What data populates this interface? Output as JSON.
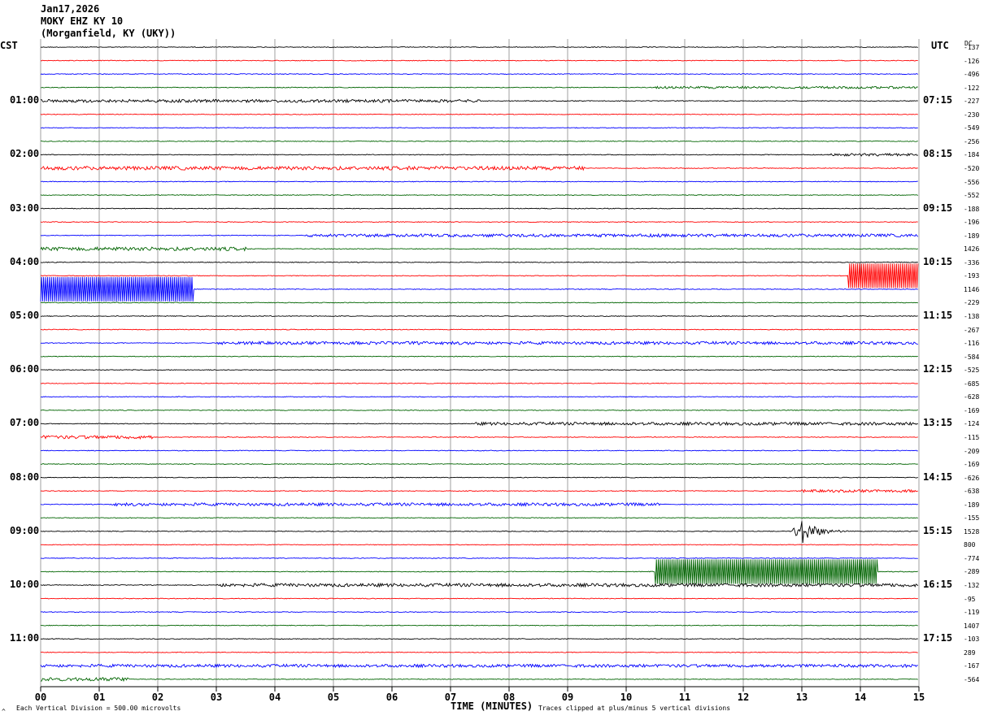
{
  "header": {
    "date": "Jan17,2026",
    "station": "MOKY EHZ KY 10",
    "location": "(Morganfield, KY (UKY))"
  },
  "left_axis_title": "CST",
  "right_axis_title": "UTC",
  "dc_label": "DC",
  "footer": {
    "scale_note": "Each Vertical Division =  500.00 microvolts",
    "xlabel": "TIME (MINUTES)",
    "clip_note": "Traces clipped at plus/minus 5 vertical divisions"
  },
  "colors": {
    "trace_cycle": [
      "#000000",
      "#ff0000",
      "#0000ff",
      "#006400"
    ],
    "grid": "#888888"
  },
  "chart_data": {
    "type": "line",
    "title": "MOKY EHZ KY 10 helicorder Jan17,2026",
    "xlabel": "TIME (MINUTES)",
    "xlim": [
      0,
      15
    ],
    "x_ticks": [
      "00",
      "01",
      "02",
      "03",
      "04",
      "05",
      "06",
      "07",
      "08",
      "09",
      "10",
      "11",
      "12",
      "13",
      "14",
      "15"
    ],
    "left_time_labels": [
      {
        "row": 4,
        "label": "01:00"
      },
      {
        "row": 8,
        "label": "02:00"
      },
      {
        "row": 12,
        "label": "03:00"
      },
      {
        "row": 16,
        "label": "04:00"
      },
      {
        "row": 20,
        "label": "05:00"
      },
      {
        "row": 24,
        "label": "06:00"
      },
      {
        "row": 28,
        "label": "07:00"
      },
      {
        "row": 32,
        "label": "08:00"
      },
      {
        "row": 36,
        "label": "09:00"
      },
      {
        "row": 40,
        "label": "10:00"
      },
      {
        "row": 44,
        "label": "11:00"
      }
    ],
    "right_time_labels": [
      {
        "row": 4,
        "label": "07:15"
      },
      {
        "row": 8,
        "label": "08:15"
      },
      {
        "row": 12,
        "label": "09:15"
      },
      {
        "row": 16,
        "label": "10:15"
      },
      {
        "row": 20,
        "label": "11:15"
      },
      {
        "row": 24,
        "label": "12:15"
      },
      {
        "row": 28,
        "label": "13:15"
      },
      {
        "row": 32,
        "label": "14:15"
      },
      {
        "row": 36,
        "label": "15:15"
      },
      {
        "row": 40,
        "label": "16:15"
      },
      {
        "row": 44,
        "label": "17:15"
      }
    ],
    "dc_offsets": [
      "-137",
      "-126",
      "-496",
      "-122",
      "-227",
      "-230",
      "-549",
      "-256",
      "-184",
      "-520",
      "-556",
      "-552",
      "-188",
      "-196",
      "-189",
      "1426",
      "-336",
      "-193",
      "1146",
      "-229",
      "-138",
      "-267",
      "-116",
      "-584",
      "-525",
      "-685",
      "-628",
      "-169",
      "-124",
      "-115",
      "-209",
      "-169",
      "-626",
      "-638",
      "-189",
      "-155",
      "1528",
      "800",
      "-774",
      "-289",
      "-132",
      "-95",
      "-119",
      "1407",
      "-103",
      "289",
      "-167",
      "-564"
    ],
    "events": [
      {
        "row": 3,
        "start_min": 10.5,
        "end_min": 15,
        "amp": 0.35,
        "type": "noise"
      },
      {
        "row": 4,
        "start_min": 0,
        "end_min": 7.5,
        "amp": 0.45,
        "type": "noise"
      },
      {
        "row": 8,
        "start_min": 13.5,
        "end_min": 15,
        "amp": 0.4,
        "type": "noise"
      },
      {
        "row": 9,
        "start_min": 0,
        "end_min": 9.3,
        "amp": 0.55,
        "type": "noise"
      },
      {
        "row": 14,
        "start_min": 4.5,
        "end_min": 15,
        "amp": 0.45,
        "type": "noise"
      },
      {
        "row": 15,
        "start_min": 0,
        "end_min": 3.5,
        "amp": 0.55,
        "type": "noise"
      },
      {
        "row": 17,
        "start_min": 13.8,
        "end_min": 15,
        "amp": 1.9,
        "type": "clip"
      },
      {
        "row": 18,
        "start_min": 0,
        "end_min": 2.6,
        "amp": 1.9,
        "type": "clip"
      },
      {
        "row": 22,
        "start_min": 3.0,
        "end_min": 15,
        "amp": 0.45,
        "type": "noise"
      },
      {
        "row": 28,
        "start_min": 7.4,
        "end_min": 15,
        "amp": 0.45,
        "type": "noise"
      },
      {
        "row": 29,
        "start_min": 0,
        "end_min": 1.9,
        "amp": 0.5,
        "type": "noise"
      },
      {
        "row": 33,
        "start_min": 13.0,
        "end_min": 15,
        "amp": 0.4,
        "type": "noise"
      },
      {
        "row": 34,
        "start_min": 1.2,
        "end_min": 10.6,
        "amp": 0.45,
        "type": "noise"
      },
      {
        "row": 36,
        "start_min": 12.8,
        "end_min": 13.8,
        "amp": 1.6,
        "type": "quake"
      },
      {
        "row": 39,
        "start_min": 10.5,
        "end_min": 14.3,
        "amp": 1.9,
        "type": "clip"
      },
      {
        "row": 40,
        "start_min": 3.0,
        "end_min": 15,
        "amp": 0.5,
        "type": "noise"
      },
      {
        "row": 46,
        "start_min": 0,
        "end_min": 15,
        "amp": 0.45,
        "type": "noise"
      },
      {
        "row": 47,
        "start_min": 0,
        "end_min": 1.5,
        "amp": 0.55,
        "type": "noise"
      }
    ]
  }
}
